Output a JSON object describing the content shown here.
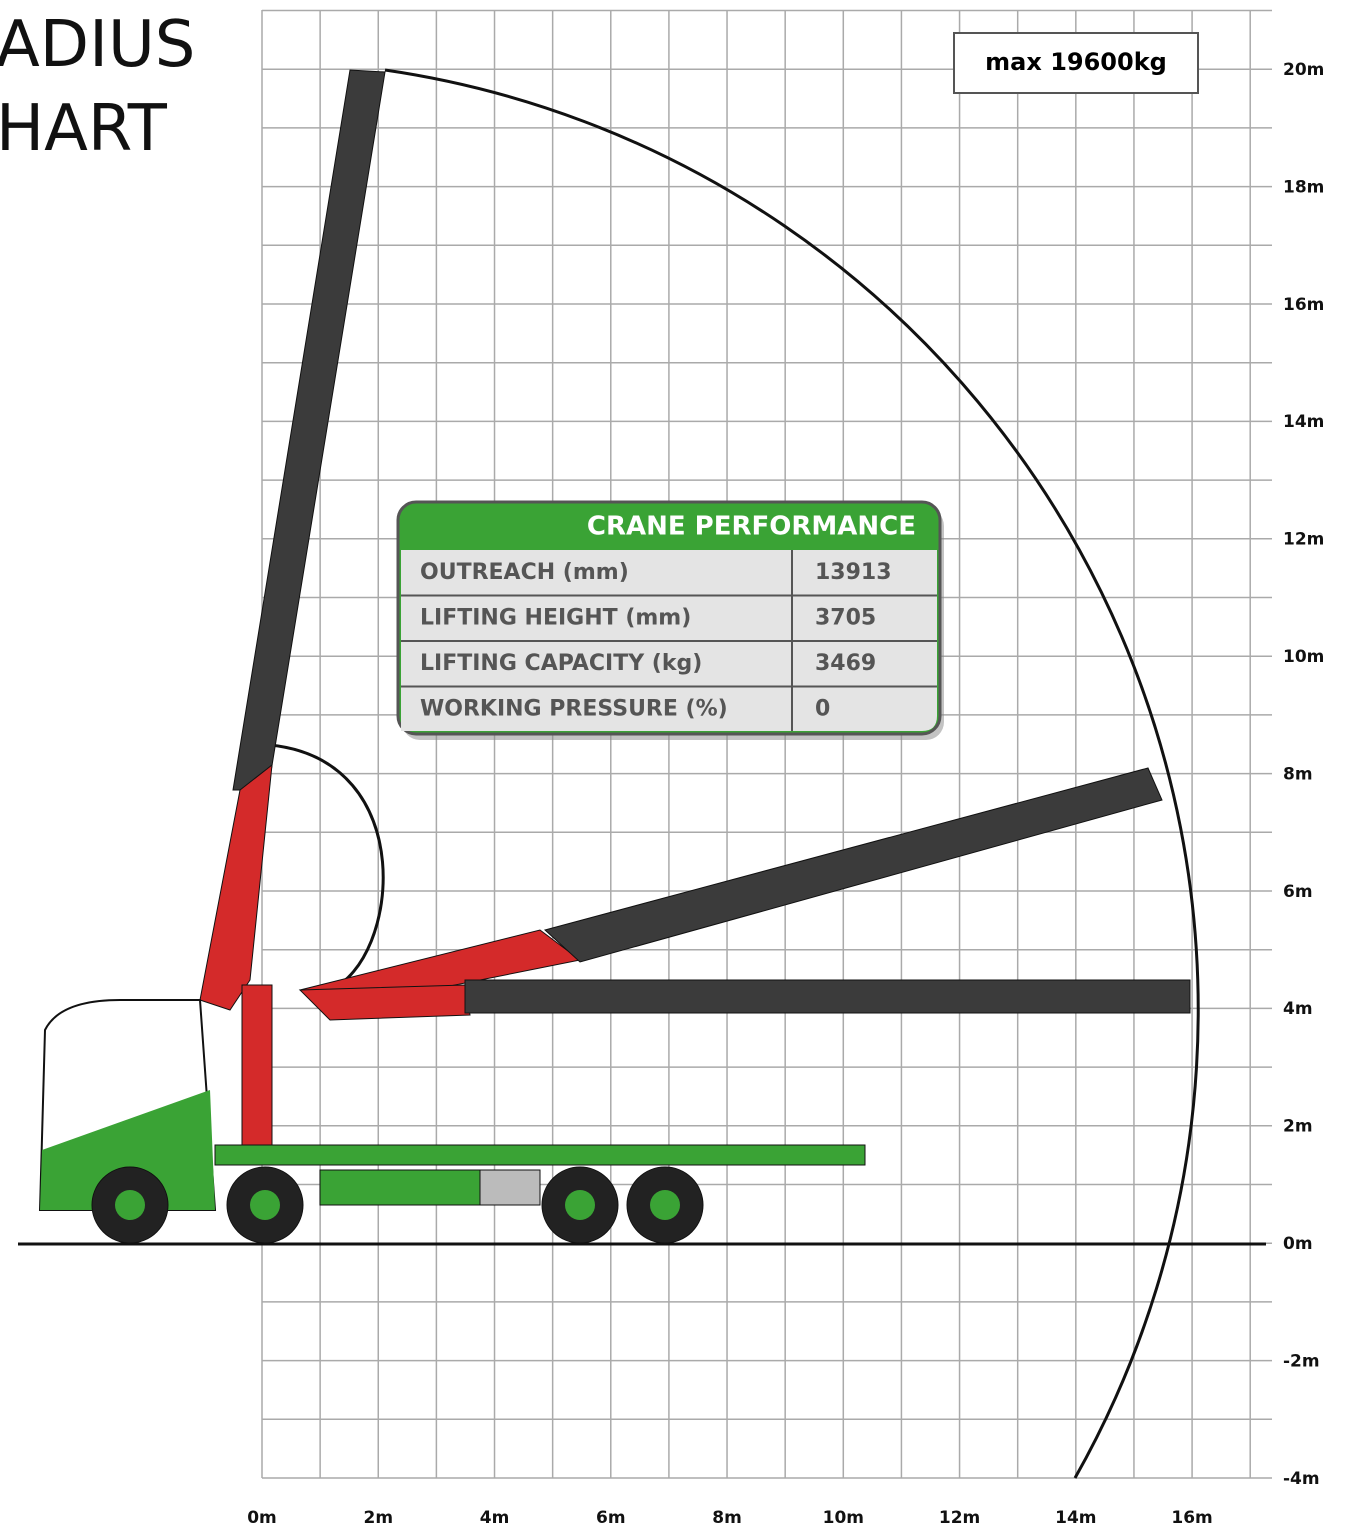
{
  "title": {
    "line1": "ADIUS",
    "line2": "HART"
  },
  "max_box": "max 19600kg",
  "axes": {
    "x_ticks": [
      "0m",
      "2m",
      "4m",
      "6m",
      "8m",
      "10m",
      "12m",
      "14m",
      "16m"
    ],
    "y_ticks": [
      "20m",
      "18m",
      "16m",
      "14m",
      "12m",
      "10m",
      "8m",
      "6m",
      "4m",
      "2m",
      "0m",
      "-2m",
      "-4m"
    ]
  },
  "table": {
    "header": "CRANE PERFORMANCE",
    "rows": [
      [
        "OUTREACH (mm)",
        "13913"
      ],
      [
        "LIFTING HEIGHT (mm)",
        "3705"
      ],
      [
        "LIFTING CAPACITY (kg)",
        "3469"
      ],
      [
        "WORKING PRESSURE (%)",
        "0"
      ]
    ]
  }
}
